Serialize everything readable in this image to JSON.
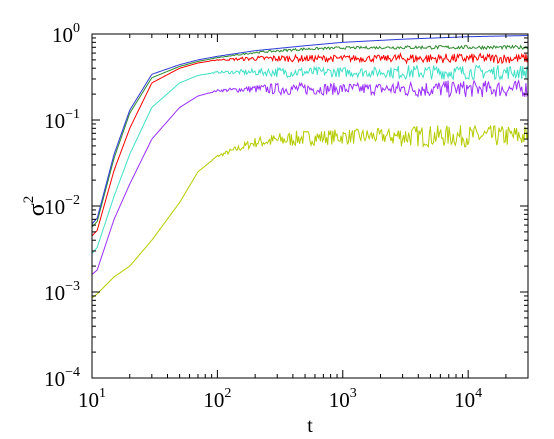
{
  "chart_data": {
    "type": "line",
    "title": "",
    "xlabel": "t",
    "ylabel": "σ",
    "ylabel_superscript": "2",
    "x_scale": "log",
    "y_scale": "log",
    "xlim": [
      10,
      30000
    ],
    "ylim": [
      0.0001,
      1
    ],
    "grid": false,
    "legend": "none",
    "x_ticks": [
      {
        "value": 10,
        "base": "10",
        "exp": "1"
      },
      {
        "value": 100,
        "base": "10",
        "exp": "2"
      },
      {
        "value": 1000,
        "base": "10",
        "exp": "3"
      },
      {
        "value": 10000,
        "base": "10",
        "exp": "4"
      }
    ],
    "y_ticks": [
      {
        "value": 0.0001,
        "base": "10",
        "exp": "−4"
      },
      {
        "value": 0.001,
        "base": "10",
        "exp": "−3"
      },
      {
        "value": 0.01,
        "base": "10",
        "exp": "−2"
      },
      {
        "value": 0.1,
        "base": "10",
        "exp": "−1"
      },
      {
        "value": 1,
        "base": "10",
        "exp": "0"
      }
    ],
    "x": [
      10,
      11,
      15,
      20,
      30,
      50,
      70,
      100,
      200,
      500,
      1000,
      3000,
      10000,
      30000
    ],
    "series": [
      {
        "color": "#2e3cd6",
        "noise": 0.0,
        "values": [
          0.0062,
          0.0072,
          0.04,
          0.13,
          0.34,
          0.44,
          0.5,
          0.55,
          0.64,
          0.73,
          0.8,
          0.87,
          0.93,
          0.96
        ]
      },
      {
        "color": "#2e8b2e",
        "noise": 0.03,
        "values": [
          0.0057,
          0.0066,
          0.036,
          0.12,
          0.31,
          0.42,
          0.48,
          0.53,
          0.61,
          0.67,
          0.69,
          0.7,
          0.7,
          0.7
        ]
      },
      {
        "color": "#ff0000",
        "noise": 0.08,
        "values": [
          0.0045,
          0.0052,
          0.026,
          0.08,
          0.27,
          0.4,
          0.46,
          0.5,
          0.52,
          0.52,
          0.52,
          0.52,
          0.52,
          0.52
        ]
      },
      {
        "color": "#40e0c8",
        "noise": 0.12,
        "values": [
          0.0028,
          0.0033,
          0.013,
          0.04,
          0.14,
          0.27,
          0.33,
          0.36,
          0.36,
          0.36,
          0.36,
          0.36,
          0.36,
          0.36
        ]
      },
      {
        "color": "#9b30ff",
        "noise": 0.14,
        "values": [
          0.0016,
          0.0018,
          0.007,
          0.018,
          0.06,
          0.14,
          0.19,
          0.22,
          0.23,
          0.23,
          0.23,
          0.23,
          0.23,
          0.23
        ]
      },
      {
        "color": "#b5cc00",
        "noise": 0.18,
        "values": [
          0.00085,
          0.00095,
          0.0015,
          0.002,
          0.004,
          0.011,
          0.025,
          0.038,
          0.055,
          0.062,
          0.064,
          0.065,
          0.065,
          0.065
        ]
      }
    ]
  }
}
